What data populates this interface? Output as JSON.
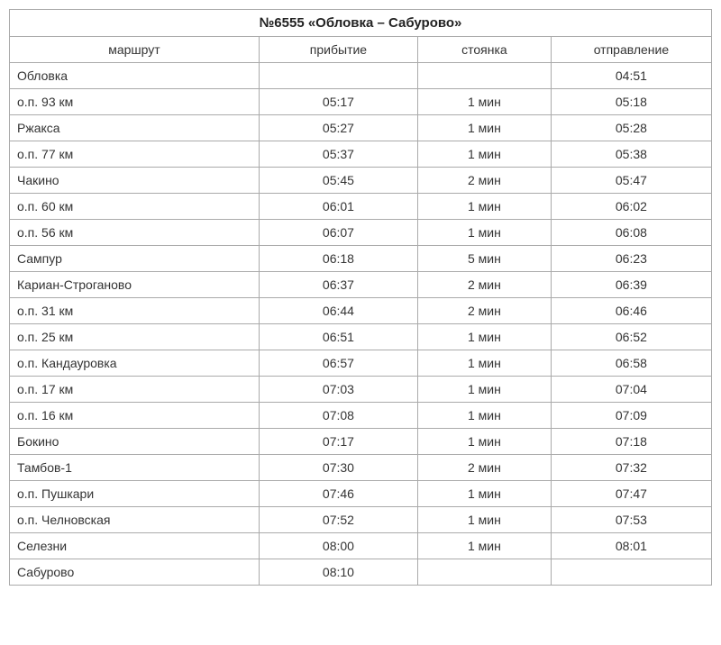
{
  "title": "№6555 «Обловка – Сабурово»",
  "columns": {
    "route": "маршрут",
    "arrival": "прибытие",
    "stop": "стоянка",
    "departure": "отправление"
  },
  "rows": [
    {
      "route": "Обловка",
      "arrival": "",
      "stop": "",
      "departure": "04:51"
    },
    {
      "route": "о.п. 93 км",
      "arrival": "05:17",
      "stop": "1 мин",
      "departure": "05:18"
    },
    {
      "route": "Ржакса",
      "arrival": "05:27",
      "stop": "1 мин",
      "departure": "05:28"
    },
    {
      "route": "о.п. 77 км",
      "arrival": "05:37",
      "stop": "1 мин",
      "departure": "05:38"
    },
    {
      "route": "Чакино",
      "arrival": "05:45",
      "stop": "2 мин",
      "departure": "05:47"
    },
    {
      "route": "о.п. 60 км",
      "arrival": "06:01",
      "stop": "1 мин",
      "departure": "06:02"
    },
    {
      "route": "о.п. 56 км",
      "arrival": "06:07",
      "stop": "1 мин",
      "departure": "06:08"
    },
    {
      "route": "Сампур",
      "arrival": "06:18",
      "stop": "5 мин",
      "departure": "06:23"
    },
    {
      "route": "Кариан-Строганово",
      "arrival": "06:37",
      "stop": "2 мин",
      "departure": "06:39"
    },
    {
      "route": "о.п. 31 км",
      "arrival": "06:44",
      "stop": "2 мин",
      "departure": "06:46"
    },
    {
      "route": "о.п. 25 км",
      "arrival": "06:51",
      "stop": "1 мин",
      "departure": "06:52"
    },
    {
      "route": "о.п. Кандауровка",
      "arrival": "06:57",
      "stop": "1 мин",
      "departure": "06:58"
    },
    {
      "route": "о.п. 17 км",
      "arrival": "07:03",
      "stop": "1 мин",
      "departure": "07:04"
    },
    {
      "route": "о.п. 16 км",
      "arrival": "07:08",
      "stop": "1 мин",
      "departure": "07:09"
    },
    {
      "route": "Бокино",
      "arrival": "07:17",
      "stop": "1 мин",
      "departure": "07:18"
    },
    {
      "route": "Тамбов-1",
      "arrival": "07:30",
      "stop": "2 мин",
      "departure": "07:32"
    },
    {
      "route": "о.п. Пушкари",
      "arrival": "07:46",
      "stop": "1 мин",
      "departure": "07:47"
    },
    {
      "route": "о.п. Челновская",
      "arrival": "07:52",
      "stop": "1 мин",
      "departure": "07:53"
    },
    {
      "route": "Селезни",
      "arrival": "08:00",
      "stop": "1 мин",
      "departure": "08:01"
    },
    {
      "route": "Сабурово",
      "arrival": "08:10",
      "stop": "",
      "departure": ""
    }
  ],
  "styles": {
    "border_color": "#aaaaaa",
    "text_color": "#333333",
    "background_color": "#ffffff",
    "font_family": "Verdana, Geneva, sans-serif",
    "cell_fontsize": 14,
    "title_fontsize": 15
  }
}
